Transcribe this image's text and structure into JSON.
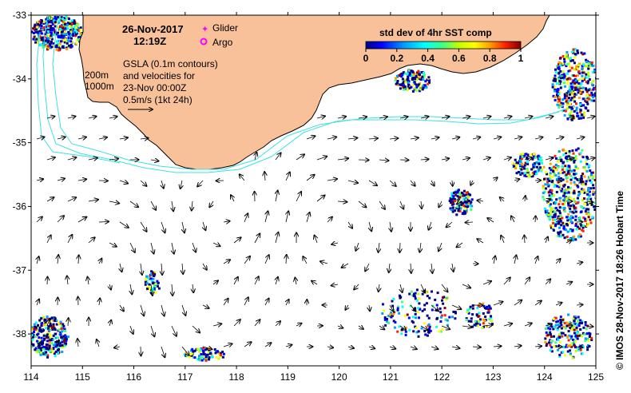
{
  "header": {
    "date": "26-Nov-2017",
    "time": "12:19Z"
  },
  "legend": {
    "glider_label": "Glider",
    "argo_label": "Argo",
    "glider_color": "#ff00ff",
    "argo_color": "#ff00ff"
  },
  "isobaths": {
    "label_200": "200m",
    "label_1000": "1000m",
    "color": "#40e0e0"
  },
  "gsla": {
    "line1": "GSLA (0.1m contours)",
    "line2": "and velocities for",
    "line3": "23-Nov 00:00Z",
    "line4": "0.5m/s (1kt 24h)"
  },
  "colorbar": {
    "title": "std dev of 4hr SST comp",
    "ticks": [
      "0",
      "0.2",
      "0.4",
      "0.6",
      "0.8",
      "1"
    ],
    "range": [
      0,
      1
    ],
    "stops": [
      "#000080",
      "#0000ff",
      "#00a0ff",
      "#00ffff",
      "#40ff80",
      "#c0ff00",
      "#ffff00",
      "#ffa000",
      "#ff2000",
      "#800000"
    ]
  },
  "credit": "© IMOS 28-Nov-2017 18:26 Hobart Time",
  "land_color": "#f9c199",
  "map": {
    "lon_range": [
      114,
      125
    ],
    "lat_range": [
      -38.5,
      -33
    ],
    "lon_ticks": [
      "114",
      "115",
      "116",
      "117",
      "118",
      "119",
      "120",
      "121",
      "122",
      "123",
      "124",
      "125"
    ],
    "lat_ticks": [
      "-33",
      "-34",
      "-35",
      "-36",
      "-37",
      "-38"
    ]
  }
}
